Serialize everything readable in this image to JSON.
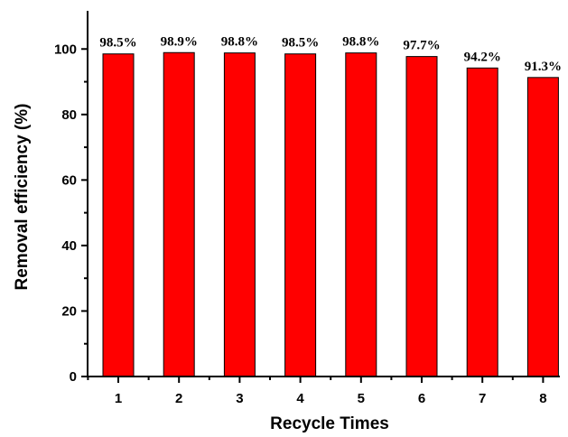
{
  "chart_data": {
    "type": "bar",
    "categories": [
      "1",
      "2",
      "3",
      "4",
      "5",
      "6",
      "7",
      "8"
    ],
    "values": [
      98.5,
      98.9,
      98.8,
      98.5,
      98.8,
      97.7,
      94.2,
      91.3
    ],
    "data_labels": [
      "98.5%",
      "98.9%",
      "98.8%",
      "98.5%",
      "98.8%",
      "97.7%",
      "94.2%",
      "91.3%"
    ],
    "title": "",
    "xlabel": "Recycle Times",
    "ylabel": "Removal  efficiency (%)",
    "ylim": [
      0,
      110
    ],
    "yticks": [
      "0",
      "20",
      "40",
      "60",
      "80",
      "100"
    ],
    "grid": false,
    "bar_color": "#ff0000"
  }
}
